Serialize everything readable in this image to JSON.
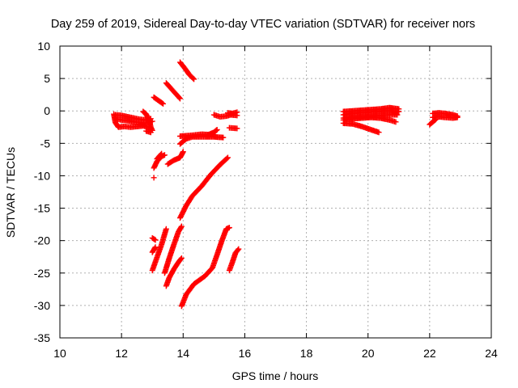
{
  "chart_data": {
    "type": "scatter",
    "title": "Day 259 of 2019, Sidereal Day-to-day VTEC variation (SDTVAR) for receiver nors",
    "xlabel": "GPS time / hours",
    "ylabel": "SDTVAR / TECUs",
    "xlim": [
      10,
      24
    ],
    "ylim": [
      -35,
      10
    ],
    "xticks": [
      "10",
      "12",
      "14",
      "16",
      "18",
      "20",
      "22",
      "24"
    ],
    "yticks": [
      "10",
      "5",
      "0",
      "-5",
      "-10",
      "-15",
      "-20",
      "-25",
      "-30",
      "-35"
    ],
    "grid": true,
    "legend": "none",
    "marker": "+",
    "color": "#ff0000",
    "series": [
      {
        "points": [
          [
            11.75,
            -0.5
          ],
          [
            11.8,
            -1.8
          ],
          [
            11.9,
            -2.5
          ],
          [
            12.1,
            -2.4
          ],
          [
            12.3,
            -2.5
          ],
          [
            12.5,
            -2.4
          ],
          [
            12.7,
            -2.3
          ],
          [
            12.9,
            -2.6
          ]
        ]
      },
      {
        "points": [
          [
            11.8,
            -0.6
          ],
          [
            12.0,
            -0.7
          ],
          [
            12.2,
            -0.9
          ],
          [
            12.4,
            -1.1
          ],
          [
            12.6,
            -1.3
          ],
          [
            12.8,
            -1.4
          ],
          [
            12.95,
            -1.2
          ]
        ]
      },
      {
        "points": [
          [
            11.8,
            -1.2
          ],
          [
            12.0,
            -1.4
          ],
          [
            12.2,
            -1.5
          ],
          [
            12.4,
            -1.7
          ],
          [
            12.6,
            -1.8
          ],
          [
            12.8,
            -1.9
          ],
          [
            13.0,
            -1.6
          ]
        ]
      },
      {
        "points": [
          [
            12.7,
            -0.1
          ],
          [
            12.8,
            -0.5
          ],
          [
            12.9,
            -1.5
          ],
          [
            12.95,
            -2.5
          ],
          [
            13.0,
            -3.0
          ]
        ]
      },
      {
        "points": [
          [
            12.8,
            -3.1
          ],
          [
            12.95,
            -3.3
          ]
        ]
      },
      {
        "points": [
          [
            13.05,
            2.1
          ],
          [
            13.2,
            1.6
          ],
          [
            13.35,
            1.1
          ]
        ]
      },
      {
        "points": [
          [
            13.45,
            4.3
          ],
          [
            13.6,
            3.5
          ],
          [
            13.75,
            2.7
          ],
          [
            13.9,
            1.9
          ]
        ]
      },
      {
        "points": [
          [
            13.9,
            7.5
          ],
          [
            14.05,
            6.6
          ],
          [
            14.2,
            5.6
          ],
          [
            14.35,
            4.9
          ]
        ]
      },
      {
        "points": [
          [
            13.05,
            -8.8
          ],
          [
            13.15,
            -7.8
          ],
          [
            13.3,
            -7.0
          ],
          [
            13.4,
            -6.8
          ]
        ]
      },
      {
        "points": [
          [
            13.05,
            -10.3
          ]
        ]
      },
      {
        "points": [
          [
            13.15,
            -7.4
          ],
          [
            13.3,
            -6.6
          ]
        ]
      },
      {
        "points": [
          [
            13.5,
            -8.2
          ],
          [
            13.7,
            -7.6
          ],
          [
            13.9,
            -7.2
          ],
          [
            14.0,
            -6.3
          ]
        ]
      },
      {
        "points": [
          [
            13.9,
            -3.9
          ],
          [
            14.2,
            -3.8
          ],
          [
            14.6,
            -3.6
          ],
          [
            15.0,
            -3.7
          ]
        ]
      },
      {
        "points": [
          [
            13.9,
            -5.1
          ],
          [
            14.1,
            -4.3
          ],
          [
            14.3,
            -4.0
          ],
          [
            14.7,
            -4.0
          ],
          [
            15.0,
            -4.0
          ],
          [
            15.3,
            -4.1
          ]
        ]
      },
      {
        "points": [
          [
            14.8,
            -3.7
          ],
          [
            15.0,
            -3.3
          ],
          [
            15.1,
            -2.9
          ]
        ]
      },
      {
        "points": [
          [
            15.0,
            -0.6
          ],
          [
            15.2,
            -0.9
          ],
          [
            15.4,
            -0.8
          ],
          [
            15.55,
            -0.6
          ],
          [
            15.75,
            -0.7
          ]
        ]
      },
      {
        "points": [
          [
            15.45,
            -0.3
          ],
          [
            15.6,
            -0.4
          ],
          [
            15.75,
            -0.2
          ]
        ]
      },
      {
        "points": [
          [
            15.5,
            -2.6
          ],
          [
            15.75,
            -2.7
          ]
        ]
      },
      {
        "points": [
          [
            13.9,
            -16.5
          ],
          [
            14.1,
            -14.6
          ],
          [
            14.3,
            -13.1
          ],
          [
            14.6,
            -11.6
          ],
          [
            14.9,
            -9.8
          ],
          [
            15.2,
            -8.3
          ],
          [
            15.45,
            -7.2
          ]
        ]
      },
      {
        "points": [
          [
            13.0,
            -19.6
          ],
          [
            13.1,
            -19.9
          ]
        ]
      },
      {
        "points": [
          [
            13.0,
            -21.8
          ],
          [
            13.1,
            -21.0
          ]
        ]
      },
      {
        "points": [
          [
            13.0,
            -24.6
          ],
          [
            13.15,
            -22.6
          ],
          [
            13.3,
            -20.6
          ],
          [
            13.45,
            -18.2
          ]
        ]
      },
      {
        "points": [
          [
            13.45,
            -27.0
          ],
          [
            13.55,
            -25.7
          ],
          [
            13.7,
            -24.4
          ],
          [
            13.85,
            -23.3
          ],
          [
            13.95,
            -22.7
          ]
        ]
      },
      {
        "points": [
          [
            13.4,
            -25.0
          ],
          [
            13.55,
            -22.7
          ],
          [
            13.7,
            -20.6
          ],
          [
            13.85,
            -18.6
          ],
          [
            13.95,
            -17.8
          ]
        ]
      },
      {
        "points": [
          [
            13.95,
            -30.1
          ],
          [
            14.1,
            -28.3
          ],
          [
            14.35,
            -26.7
          ],
          [
            14.7,
            -25.5
          ],
          [
            14.95,
            -24.2
          ],
          [
            15.1,
            -22.2
          ],
          [
            15.25,
            -20.1
          ],
          [
            15.4,
            -18.2
          ],
          [
            15.5,
            -18.0
          ]
        ]
      },
      {
        "points": [
          [
            15.5,
            -24.6
          ],
          [
            15.6,
            -23.3
          ],
          [
            15.7,
            -21.9
          ],
          [
            15.8,
            -21.3
          ]
        ]
      },
      {
        "points": [
          [
            19.2,
            -0.1
          ],
          [
            19.5,
            0.0
          ],
          [
            19.8,
            0.1
          ],
          [
            20.1,
            0.2
          ],
          [
            20.4,
            0.3
          ],
          [
            20.7,
            0.5
          ],
          [
            21.0,
            0.3
          ]
        ]
      },
      {
        "points": [
          [
            19.2,
            -0.6
          ],
          [
            19.5,
            -0.4
          ],
          [
            19.8,
            -0.3
          ],
          [
            20.1,
            -0.2
          ],
          [
            20.4,
            -0.1
          ],
          [
            20.7,
            0.0
          ],
          [
            21.0,
            -0.1
          ]
        ]
      },
      {
        "points": [
          [
            19.2,
            -1.1
          ],
          [
            19.5,
            -1.0
          ],
          [
            19.8,
            -0.9
          ],
          [
            20.1,
            -0.8
          ],
          [
            20.4,
            -0.7
          ],
          [
            20.7,
            -0.6
          ],
          [
            20.95,
            -0.6
          ]
        ]
      },
      {
        "points": [
          [
            19.2,
            -1.4
          ],
          [
            19.5,
            -1.2
          ],
          [
            19.8,
            -1.1
          ],
          [
            20.1,
            -1.0
          ],
          [
            20.4,
            -1.1
          ],
          [
            20.7,
            -1.4
          ],
          [
            20.9,
            -1.7
          ]
        ]
      },
      {
        "points": [
          [
            19.2,
            -1.9
          ],
          [
            19.5,
            -2.0
          ],
          [
            19.8,
            -2.4
          ],
          [
            20.1,
            -2.9
          ],
          [
            20.35,
            -3.3
          ]
        ]
      },
      {
        "points": [
          [
            22.1,
            -0.4
          ],
          [
            22.3,
            -0.3
          ],
          [
            22.5,
            -0.4
          ],
          [
            22.75,
            -0.6
          ],
          [
            22.9,
            -0.8
          ]
        ]
      },
      {
        "points": [
          [
            22.1,
            -1.0
          ],
          [
            22.3,
            -0.9
          ],
          [
            22.5,
            -1.0
          ],
          [
            22.75,
            -1.1
          ],
          [
            22.9,
            -1.0
          ]
        ]
      },
      {
        "points": [
          [
            22.0,
            -2.1
          ],
          [
            22.1,
            -1.7
          ],
          [
            22.2,
            -1.3
          ]
        ]
      }
    ]
  }
}
